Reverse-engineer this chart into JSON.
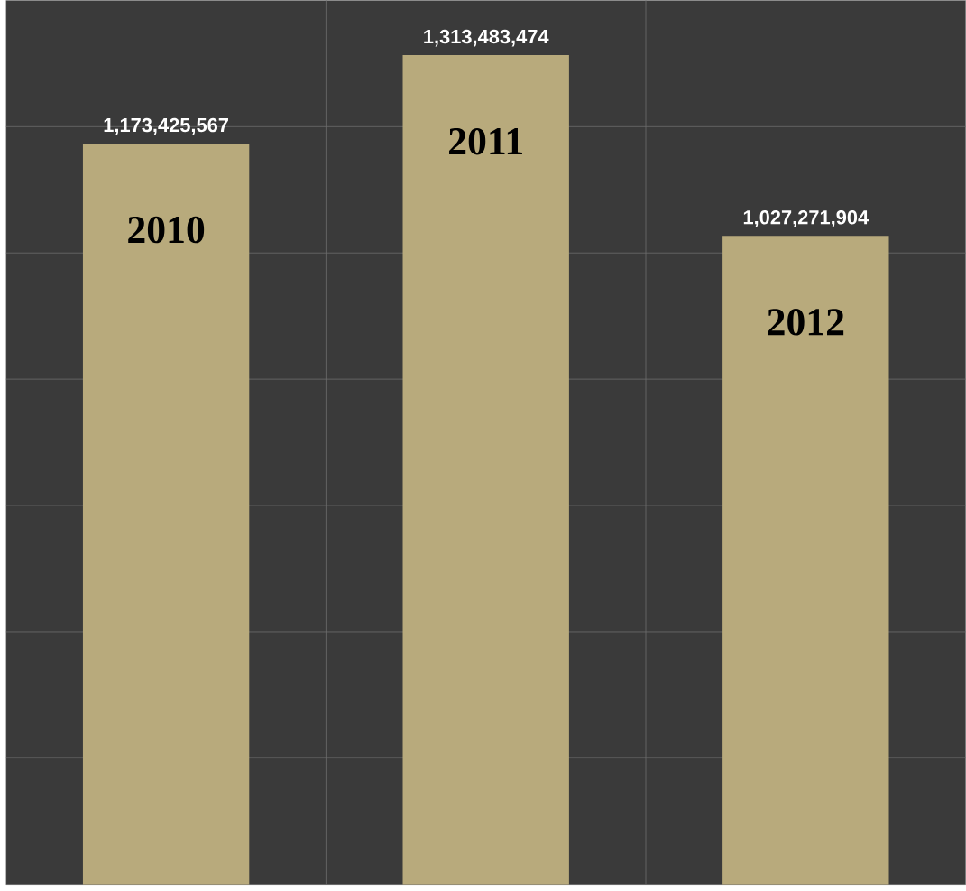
{
  "chart_data": {
    "type": "bar",
    "categories": [
      "2010",
      "2011",
      "2012"
    ],
    "values": [
      1173425567,
      1313483474,
      1027271904
    ],
    "value_labels": [
      "1,173,425,567",
      "1,313,483,474",
      "1,027,271,904"
    ],
    "color": "#b8aa7c",
    "ylim": [
      0,
      1400000000
    ],
    "yticks": [
      {
        "value": 200000000,
        "label": null
      },
      {
        "value": 400000000,
        "label": null
      },
      {
        "value": 600000000,
        "label": null
      },
      {
        "value": 800000000,
        "label": null
      },
      {
        "value": 1000000000,
        "label": null
      },
      {
        "value": 1200000000,
        "label": null
      }
    ],
    "grid": true
  }
}
